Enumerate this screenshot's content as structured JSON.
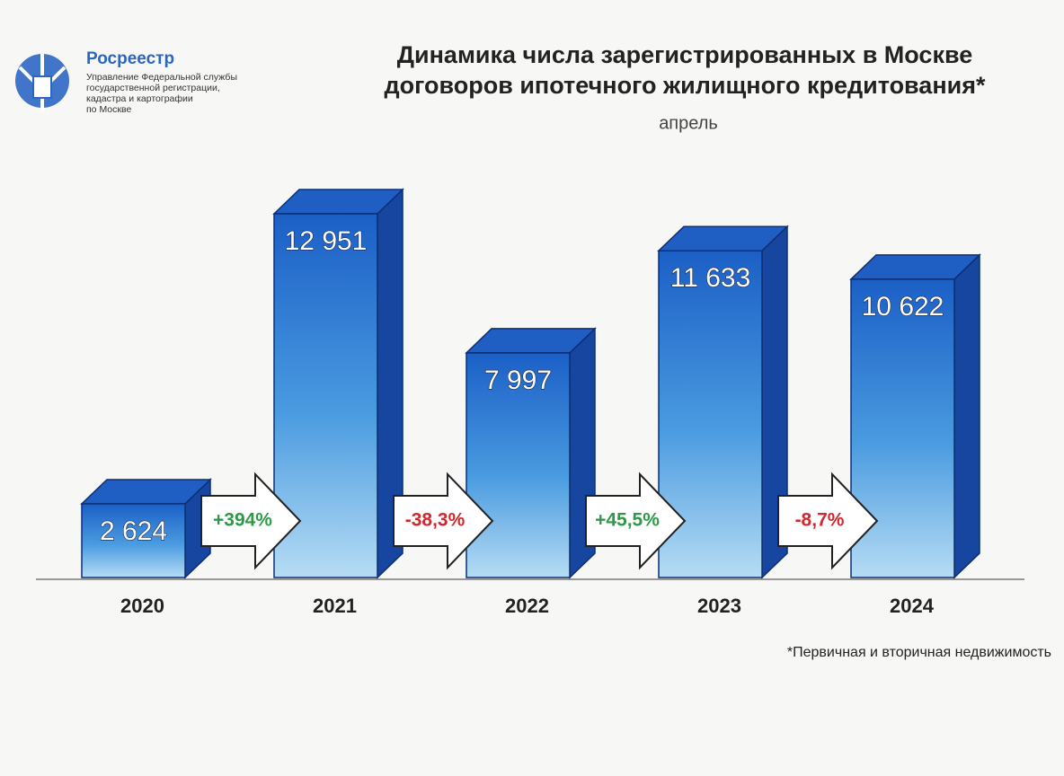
{
  "header": {
    "org_name": "Росреестр",
    "org_lines": [
      "Управление Федеральной службы",
      "государственной регистрации,",
      "кадастра и картографии",
      "по Москве"
    ]
  },
  "chart_data": {
    "type": "bar3d",
    "title": [
      "Динамика числа зарегистрированных в Москве",
      "договоров ипотечного жилищного кредитования*"
    ],
    "subtitle": "апрель",
    "categories": [
      "2020",
      "2021",
      "2022",
      "2023",
      "2024"
    ],
    "values": [
      2624,
      12951,
      7997,
      11633,
      10622
    ],
    "value_labels": [
      "2 624",
      "12 951",
      "7 997",
      "11 633",
      "10 622"
    ],
    "color": "#1f5fc4",
    "changes": [
      {
        "value": 394,
        "label": "+394%"
      },
      {
        "value": -38.3,
        "label": "-38,3%"
      },
      {
        "value": 45.5,
        "label": "+45,5%"
      },
      {
        "value": -8.7,
        "label": "-8,7%"
      }
    ],
    "positive_color": "#2e9a48",
    "negative_color": "#d0282e",
    "footnote": "*Первичная и вторичная недвижимость"
  }
}
